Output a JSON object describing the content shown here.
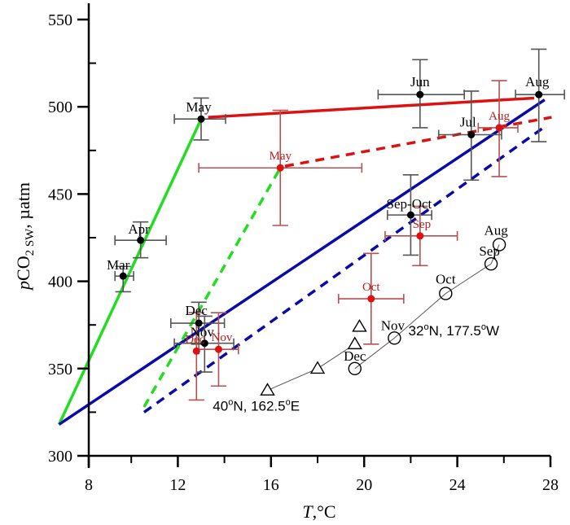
{
  "chart_data": {
    "type": "scatter",
    "title": "",
    "xlabel": "T,°C",
    "xlabel_italic": "T",
    "xlabel_unit": ",°C",
    "ylabel_prefix": "p",
    "ylabel_main": "CO",
    "ylabel_sub": "2 SW",
    "ylabel_suffix": ", µatm",
    "xlim": [
      8,
      28
    ],
    "ylim": [
      300,
      550
    ],
    "x_ticks_major": [
      8,
      12,
      16,
      20,
      24,
      28
    ],
    "x_ticks_minor": [
      10,
      14,
      18,
      22,
      26
    ],
    "y_ticks_major": [
      300,
      350,
      400,
      450,
      500,
      550
    ],
    "y_ticks_minor": [
      325,
      375,
      425,
      475,
      525
    ],
    "grid": false,
    "colors": {
      "axis": "#000000",
      "black_series": "#000000",
      "black_errbar": "#555555",
      "red_series": "#e01010",
      "red_errbar": "#b85050",
      "red_label": "#b82020",
      "green_line": "#22dd22",
      "red_line": "#dd1111",
      "blue_line": "#0a0aaa",
      "station_line": "#555555"
    },
    "series": [
      {
        "name": "black-monthly",
        "color": "#000000",
        "points": [
          {
            "label": "Mar",
            "x": 9.65,
            "y": 403,
            "xerr": [
              9.3,
              10.1
            ],
            "yerr": [
              394,
              408.5
            ]
          },
          {
            "label": "Apr",
            "x": 10.4,
            "y": 423.5,
            "xerr": [
              9.3,
              11.5
            ],
            "yerr": [
              413.5,
              434
            ]
          },
          {
            "label": "May",
            "x": 13.0,
            "y": 493,
            "xerr": [
              11.85,
              14.05
            ],
            "yerr": [
              481,
              505
            ]
          },
          {
            "label": "Jun",
            "x": 22.4,
            "y": 507,
            "xerr": [
              20.6,
              24.3
            ],
            "yerr": [
              488,
              527
            ]
          },
          {
            "label": "Jul",
            "x": 24.6,
            "y": 484,
            "xerr": [
              23.2,
              25.9
            ],
            "yerr": [
              458,
              509
            ]
          },
          {
            "label": "Aug",
            "x": 27.5,
            "y": 507,
            "xerr": [
              26.5,
              28.6
            ],
            "yerr": [
              480,
              533
            ]
          },
          {
            "label": "Sep-Oct",
            "x": 22.0,
            "y": 438,
            "xerr": [
              21.0,
              22.9
            ],
            "yerr": [
              415,
              461
            ]
          },
          {
            "label": "Dec",
            "x": 12.9,
            "y": 376,
            "xerr": [
              11.7,
              14.0
            ],
            "yerr": [
              364,
              388
            ]
          },
          {
            "label": "Nov",
            "x": 13.15,
            "y": 364.5,
            "xerr": [
              11.85,
              14.4
            ],
            "yerr": [
              348,
              380
            ]
          }
        ]
      },
      {
        "name": "red-monthly",
        "color": "#e01010",
        "points": [
          {
            "label": "May",
            "x": 16.4,
            "y": 465,
            "xerr": [
              12.9,
              19.9
            ],
            "yerr": [
              432,
              498
            ]
          },
          {
            "label": "Aug",
            "x": 25.8,
            "y": 488,
            "xerr": [
              24.9,
              26.6
            ],
            "yerr": [
              460,
              515
            ]
          },
          {
            "label": "Sep",
            "x": 22.4,
            "y": 426,
            "xerr": [
              20.9,
              24.0
            ],
            "yerr": [
              409,
              443
            ]
          },
          {
            "label": "Oct",
            "x": 20.3,
            "y": 390,
            "xerr": [
              18.9,
              21.7
            ],
            "yerr": [
              364,
              416
            ]
          },
          {
            "label": "Dec",
            "x": 12.8,
            "y": 360,
            "xerr": [
              12.8,
              12.8
            ],
            "yerr": [
              332,
              382
            ]
          },
          {
            "label": "Nov",
            "x": 13.75,
            "y": 361,
            "xerr": [
              12.9,
              14.6
            ],
            "yerr": [
              340,
              382
            ]
          }
        ]
      },
      {
        "name": "40°N, 162.5°E",
        "marker": "triangle",
        "points": [
          {
            "x": 15.85,
            "y": 337.5
          },
          {
            "x": 18.0,
            "y": 350
          },
          {
            "x": 19.6,
            "y": 364
          },
          {
            "x": 19.8,
            "y": 374
          }
        ]
      },
      {
        "name": "32°N, 177.5°W",
        "marker": "circle",
        "points": [
          {
            "label": "Dec",
            "x": 19.6,
            "y": 350
          },
          {
            "label": "Nov",
            "x": 21.3,
            "y": 367.5
          },
          {
            "label": "Oct",
            "x": 23.5,
            "y": 393
          },
          {
            "label": "Sep",
            "x": 25.45,
            "y": 410
          },
          {
            "label": "Aug",
            "x": 25.8,
            "y": 421
          }
        ]
      }
    ],
    "lines": [
      {
        "name": "green-solid",
        "color": "#22dd22",
        "dash": false,
        "points": [
          [
            6.9,
            318
          ],
          [
            13.0,
            493
          ]
        ]
      },
      {
        "name": "red-solid",
        "color": "#dd1111",
        "dash": false,
        "points": [
          [
            13.3,
            494
          ],
          [
            27.3,
            505
          ]
        ]
      },
      {
        "name": "blue-solid",
        "color": "#0a0aaa",
        "dash": false,
        "points": [
          [
            6.9,
            318
          ],
          [
            27.75,
            504
          ]
        ]
      },
      {
        "name": "green-dashed",
        "color": "#22dd22",
        "dash": true,
        "points": [
          [
            10.55,
            328
          ],
          [
            16.4,
            465
          ]
        ]
      },
      {
        "name": "red-dashed",
        "color": "#dd1111",
        "dash": true,
        "points": [
          [
            16.6,
            466
          ],
          [
            28.05,
            494
          ]
        ]
      },
      {
        "name": "blue-dashed",
        "color": "#0a0aaa",
        "dash": true,
        "points": [
          [
            10.55,
            325
          ],
          [
            27.75,
            488.5
          ]
        ]
      }
    ],
    "annotations": [
      {
        "text": "40°N, 162.5°E",
        "lat": "40",
        "lat_dir": "N, ",
        "lon": "162.5",
        "lon_dir": "E",
        "x": 13.5,
        "y": 326
      },
      {
        "text": "32°N, 177.5°W",
        "lat": "32",
        "lat_dir": "N, ",
        "lon": "177.5",
        "lon_dir": "W",
        "x": 21.9,
        "y": 369
      }
    ]
  }
}
